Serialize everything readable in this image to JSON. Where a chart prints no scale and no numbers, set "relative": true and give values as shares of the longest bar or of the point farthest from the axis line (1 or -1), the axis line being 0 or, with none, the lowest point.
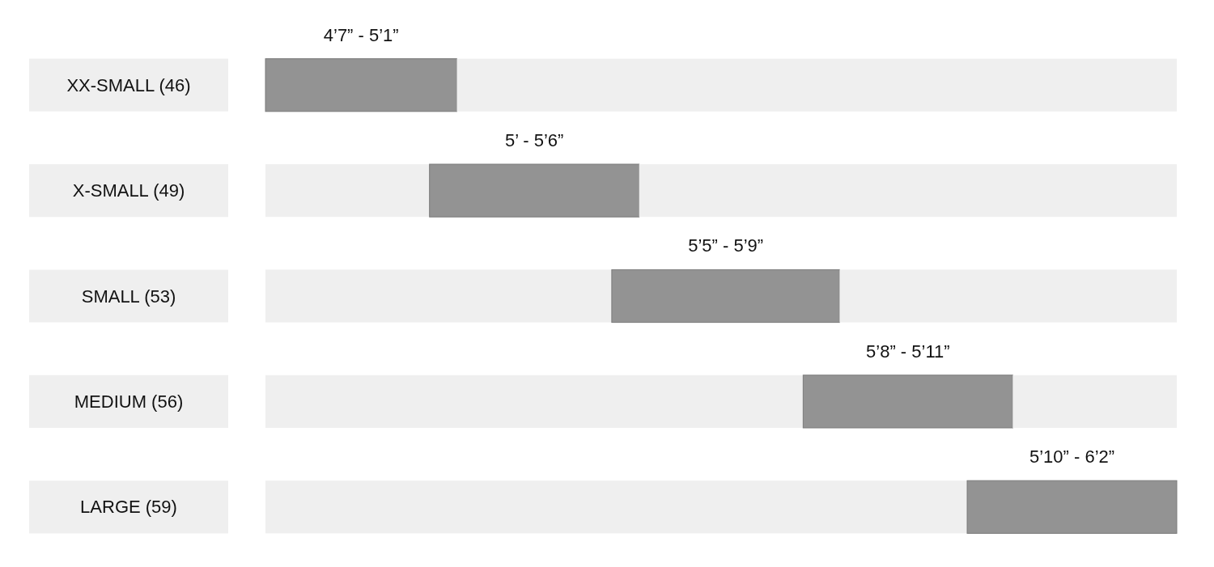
{
  "chart_data": {
    "type": "bar",
    "orientation": "horizontal",
    "relative": true,
    "stacked": true,
    "categories": [
      "XX-SMALL (46)",
      "X-SMALL (49)",
      "SMALL (53)",
      "MEDIUM (56)",
      "LARGE (59)"
    ],
    "series": [
      {
        "color": "#efefef",
        "values": [
          0,
          0.18,
          0.38,
          0.59,
          0.77
        ]
      },
      {
        "color": "#939393",
        "values": [
          0.21,
          0.23,
          0.25,
          0.23,
          0.23
        ]
      },
      {
        "color": "#efefef",
        "values": [
          0.79,
          0.59,
          0.37,
          0.18,
          0
        ]
      }
    ],
    "annotations": [
      "4’7” - 5’1”",
      "5’ - 5’6”",
      "5’5” - 5’9”",
      "5’8” - 5’11”",
      "5’10” - 6’2”"
    ]
  }
}
